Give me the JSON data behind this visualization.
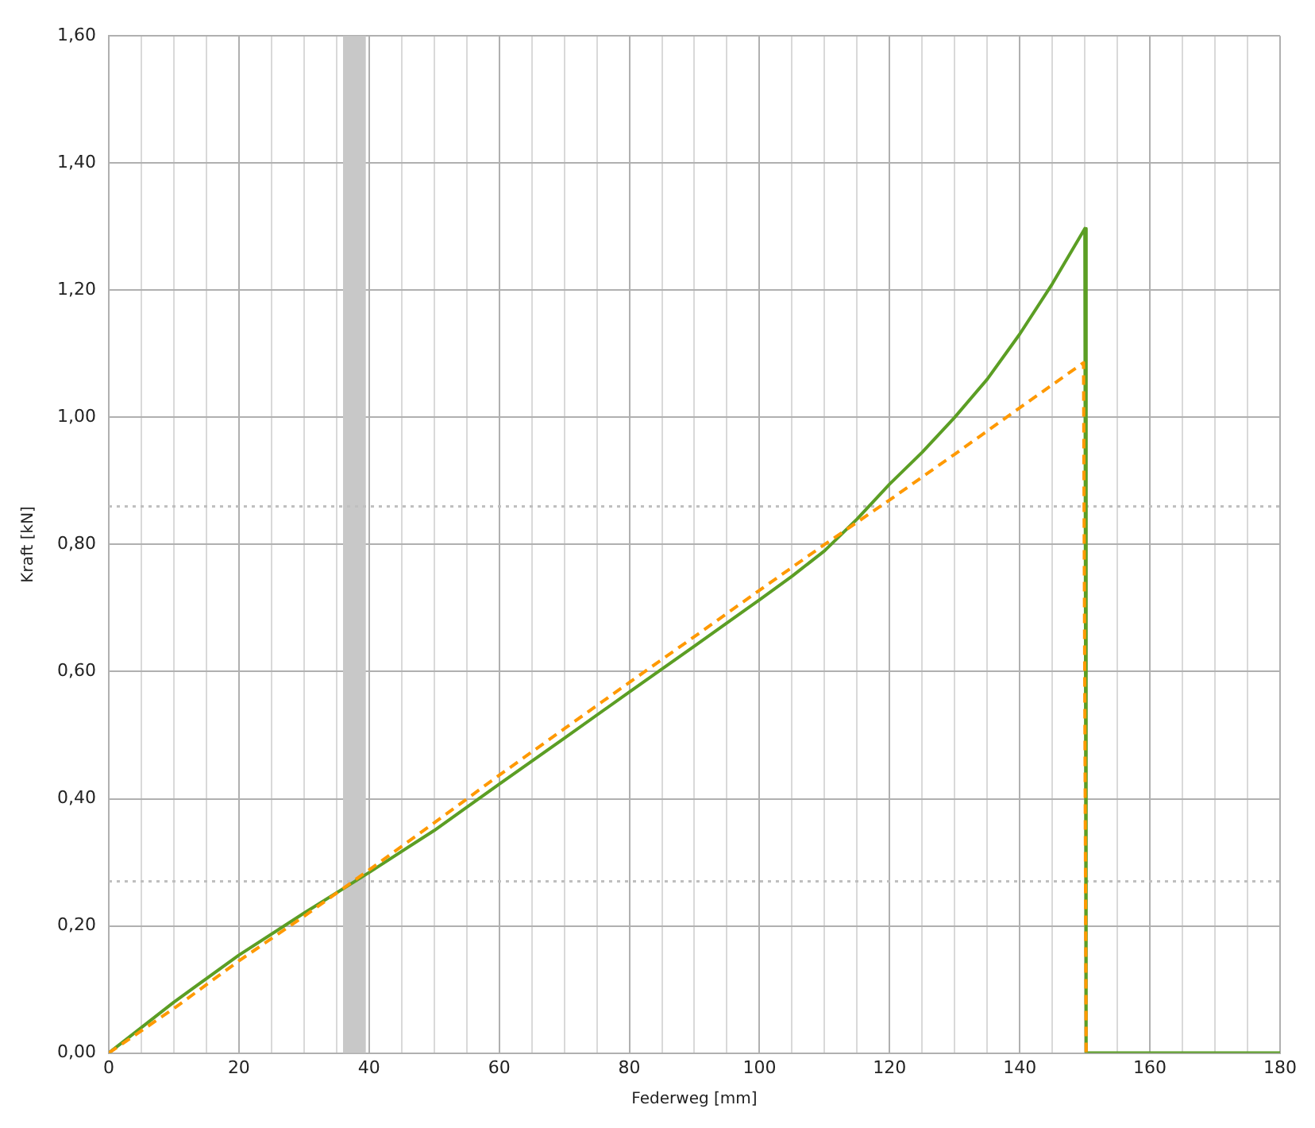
{
  "chart_data": {
    "type": "line",
    "xlabel": "Federweg [mm]",
    "ylabel": "Kraft [kN]",
    "marker": "none",
    "grid": true,
    "legend": false,
    "xlim": [
      0,
      180
    ],
    "ylim": [
      0,
      1.6
    ],
    "xticks": [
      0,
      {
        "value": 5,
        "label": null
      },
      {
        "value": 10,
        "label": null
      },
      {
        "value": 15,
        "label": null
      },
      20,
      {
        "value": 25,
        "label": null
      },
      {
        "value": 30,
        "label": null
      },
      {
        "value": 35,
        "label": null
      },
      40,
      {
        "value": 45,
        "label": null
      },
      {
        "value": 50,
        "label": null
      },
      {
        "value": 55,
        "label": null
      },
      60,
      {
        "value": 65,
        "label": null
      },
      {
        "value": 70,
        "label": null
      },
      {
        "value": 75,
        "label": null
      },
      80,
      {
        "value": 85,
        "label": null
      },
      {
        "value": 90,
        "label": null
      },
      {
        "value": 95,
        "label": null
      },
      100,
      {
        "value": 105,
        "label": null
      },
      {
        "value": 110,
        "label": null
      },
      {
        "value": 115,
        "label": null
      },
      120,
      {
        "value": 125,
        "label": null
      },
      {
        "value": 130,
        "label": null
      },
      {
        "value": 135,
        "label": null
      },
      140,
      {
        "value": 145,
        "label": null
      },
      {
        "value": 150,
        "label": null
      },
      {
        "value": 155,
        "label": null
      },
      160,
      {
        "value": 165,
        "label": null
      },
      {
        "value": 170,
        "label": null
      },
      {
        "value": 175,
        "label": null
      },
      180
    ],
    "yticks": [
      {
        "value": 0,
        "label": "0,00"
      },
      {
        "value": 0.2,
        "label": "0,20"
      },
      {
        "value": 0.4,
        "label": "0,40"
      },
      {
        "value": 0.6,
        "label": "0,60"
      },
      {
        "value": 0.8,
        "label": "0,80"
      },
      {
        "value": 1.0,
        "label": "1,00"
      },
      {
        "value": 1.2,
        "label": "1,20"
      },
      {
        "value": 1.4,
        "label": "1,40"
      },
      {
        "value": 1.6,
        "label": "1,60"
      }
    ],
    "bands": [
      {
        "axis": "x",
        "from": 36,
        "to": 39.5,
        "color": "#c8c8c8"
      }
    ],
    "ref_lines": [
      {
        "axis": "y",
        "value": 0.27,
        "color": "#bfbfbf",
        "line_style": "dotted"
      },
      {
        "axis": "y",
        "value": 0.86,
        "color": "#bfbfbf",
        "line_style": "dotted"
      }
    ],
    "series": [
      {
        "color": "#ff9900",
        "line_style": "dashed",
        "x": [
          0,
          10,
          20,
          30,
          40,
          50,
          60,
          70,
          80,
          90,
          100,
          110,
          120,
          130,
          140,
          149.8,
          150.2
        ],
        "values": [
          0,
          0.07,
          0.145,
          0.215,
          0.288,
          0.362,
          0.437,
          0.51,
          0.583,
          0.655,
          0.728,
          0.8,
          0.87,
          0.942,
          1.015,
          1.086,
          0
        ]
      },
      {
        "color": "#5b9e24",
        "line_style": "solid",
        "x": [
          0,
          5,
          10,
          20,
          30,
          40,
          50,
          60,
          70,
          80,
          90,
          100,
          105,
          110,
          115,
          120,
          125,
          130,
          135,
          140,
          145,
          150,
          150.2,
          180
        ],
        "values": [
          0,
          0.04,
          0.08,
          0.154,
          0.22,
          0.284,
          0.35,
          0.423,
          0.495,
          0.568,
          0.64,
          0.713,
          0.75,
          0.79,
          0.84,
          0.895,
          0.945,
          1.0,
          1.06,
          1.131,
          1.21,
          1.297,
          0,
          0
        ]
      }
    ]
  }
}
